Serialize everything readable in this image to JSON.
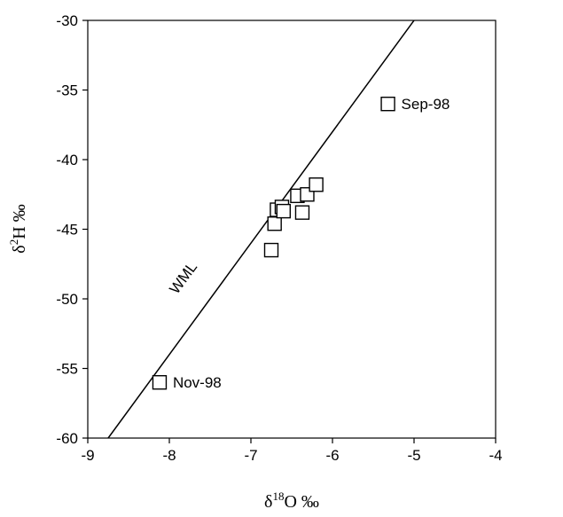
{
  "chart_data": {
    "type": "scatter",
    "title": "",
    "xlabel": {
      "base": "δ",
      "sup": "18",
      "rest": "O ‰"
    },
    "ylabel": {
      "base": "δ",
      "sup": "2",
      "rest": "H ‰"
    },
    "xlim": [
      -9,
      -4
    ],
    "ylim": [
      -60,
      -30
    ],
    "xticks": [
      -9,
      -8,
      -7,
      -6,
      -5,
      -4
    ],
    "xtick_labels": [
      "-9",
      "-8",
      "-7",
      "-6",
      "-5",
      "-4"
    ],
    "yticks": [
      -60,
      -55,
      -50,
      -45,
      -40,
      -35,
      -30
    ],
    "ytick_labels": [
      "-60",
      "-55",
      "-50",
      "-45",
      "-40",
      "-35",
      "-30"
    ],
    "grid": false,
    "marker": "open-square",
    "points": [
      {
        "x": -8.12,
        "y": -56.0
      },
      {
        "x": -6.75,
        "y": -46.5
      },
      {
        "x": -6.71,
        "y": -44.6
      },
      {
        "x": -6.68,
        "y": -43.6
      },
      {
        "x": -6.62,
        "y": -43.4
      },
      {
        "x": -6.6,
        "y": -43.7
      },
      {
        "x": -6.43,
        "y": -42.6
      },
      {
        "x": -6.37,
        "y": -43.8
      },
      {
        "x": -6.31,
        "y": -42.5
      },
      {
        "x": -6.2,
        "y": -41.8
      },
      {
        "x": -5.32,
        "y": -36.0
      }
    ],
    "line": {
      "label": "WML",
      "slope": 8,
      "intercept": 10,
      "x_range": [
        -8.75,
        -4.99
      ]
    },
    "annotations": [
      {
        "text": "Sep-98",
        "x": -5.32,
        "y": -36.0
      },
      {
        "text": "Nov-98",
        "x": -8.12,
        "y": -56.0
      }
    ],
    "colors": {
      "marker": "#000000",
      "line": "#000000",
      "axis": "#000000"
    }
  }
}
